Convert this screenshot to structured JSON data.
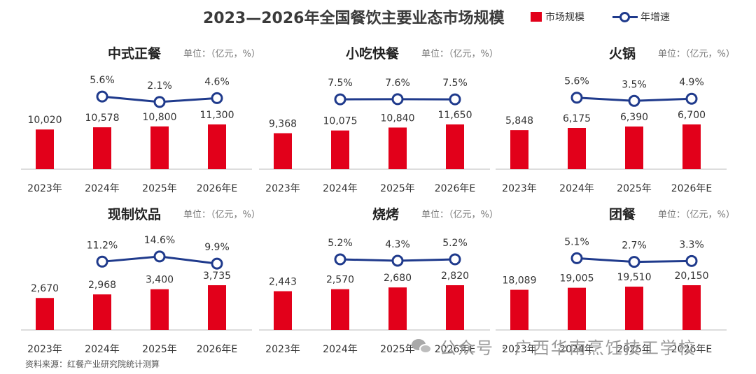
{
  "title": "2023—2026年全国餐饮主要业态市场规模",
  "legend": {
    "bar_label": "市场规模",
    "line_label": "年增速"
  },
  "colors": {
    "bar": "#e2001a",
    "line": "#1f3a8c",
    "axis": "#bbbbbb",
    "label": "#333333"
  },
  "unit_label": "单位：（亿元，%）",
  "source": "资料来源：红餐产业研究院统计测算",
  "watermark": "公众号 · 广西华南烹饪技工学校",
  "chart_data": [
    {
      "type": "bar",
      "title": "中式正餐",
      "categories": [
        "2023年",
        "2024年",
        "2025年",
        "2026年E"
      ],
      "series": [
        {
          "name": "市场规模",
          "values": [
            10020,
            10578,
            10800,
            11300
          ]
        },
        {
          "name": "年增速",
          "values": [
            null,
            5.6,
            2.1,
            4.6
          ]
        }
      ],
      "bar_labels": [
        "10,020",
        "10,578",
        "10,800",
        "11,300"
      ],
      "growth_labels": [
        "",
        "5.6%",
        "2.1%",
        "4.6%"
      ]
    },
    {
      "type": "bar",
      "title": "小吃快餐",
      "categories": [
        "2023年",
        "2024年",
        "2025年",
        "2026年E"
      ],
      "series": [
        {
          "name": "市场规模",
          "values": [
            9368,
            10075,
            10840,
            11650
          ]
        },
        {
          "name": "年增速",
          "values": [
            null,
            7.5,
            7.6,
            7.5
          ]
        }
      ],
      "bar_labels": [
        "9,368",
        "10,075",
        "10,840",
        "11,650"
      ],
      "growth_labels": [
        "",
        "7.5%",
        "7.6%",
        "7.5%"
      ]
    },
    {
      "type": "bar",
      "title": "火锅",
      "categories": [
        "2023年",
        "2024年",
        "2025年",
        "2026年E"
      ],
      "series": [
        {
          "name": "市场规模",
          "values": [
            5848,
            6175,
            6390,
            6700
          ]
        },
        {
          "name": "年增速",
          "values": [
            null,
            5.6,
            3.5,
            4.9
          ]
        }
      ],
      "bar_labels": [
        "5,848",
        "6,175",
        "6,390",
        "6,700"
      ],
      "growth_labels": [
        "",
        "5.6%",
        "3.5%",
        "4.9%"
      ]
    },
    {
      "type": "bar",
      "title": "现制饮品",
      "categories": [
        "2023年",
        "2024年",
        "2025年",
        "2026年E"
      ],
      "series": [
        {
          "name": "市场规模",
          "values": [
            2670,
            2968,
            3400,
            3735
          ]
        },
        {
          "name": "年增速",
          "values": [
            null,
            11.2,
            14.6,
            9.9
          ]
        }
      ],
      "bar_labels": [
        "2,670",
        "2,968",
        "3,400",
        "3,735"
      ],
      "growth_labels": [
        "",
        "11.2%",
        "14.6%",
        "9.9%"
      ]
    },
    {
      "type": "bar",
      "title": "烧烤",
      "categories": [
        "2023年",
        "2024年",
        "2025年",
        "2026年E"
      ],
      "series": [
        {
          "name": "市场规模",
          "values": [
            2443,
            2570,
            2680,
            2820
          ]
        },
        {
          "name": "年增速",
          "values": [
            null,
            5.2,
            4.3,
            5.2
          ]
        }
      ],
      "bar_labels": [
        "2,443",
        "2,570",
        "2,680",
        "2,820"
      ],
      "growth_labels": [
        "",
        "5.2%",
        "4.3%",
        "5.2%"
      ]
    },
    {
      "type": "bar",
      "title": "团餐",
      "categories": [
        "2023年",
        "2024年",
        "2025年",
        "2026年E"
      ],
      "series": [
        {
          "name": "市场规模",
          "values": [
            18089,
            19005,
            19510,
            20150
          ]
        },
        {
          "name": "年增速",
          "values": [
            null,
            5.1,
            2.7,
            3.3
          ]
        }
      ],
      "bar_labels": [
        "18,089",
        "19,005",
        "19,510",
        "20,150"
      ],
      "growth_labels": [
        "",
        "5.1%",
        "2.7%",
        "3.3%"
      ]
    }
  ]
}
